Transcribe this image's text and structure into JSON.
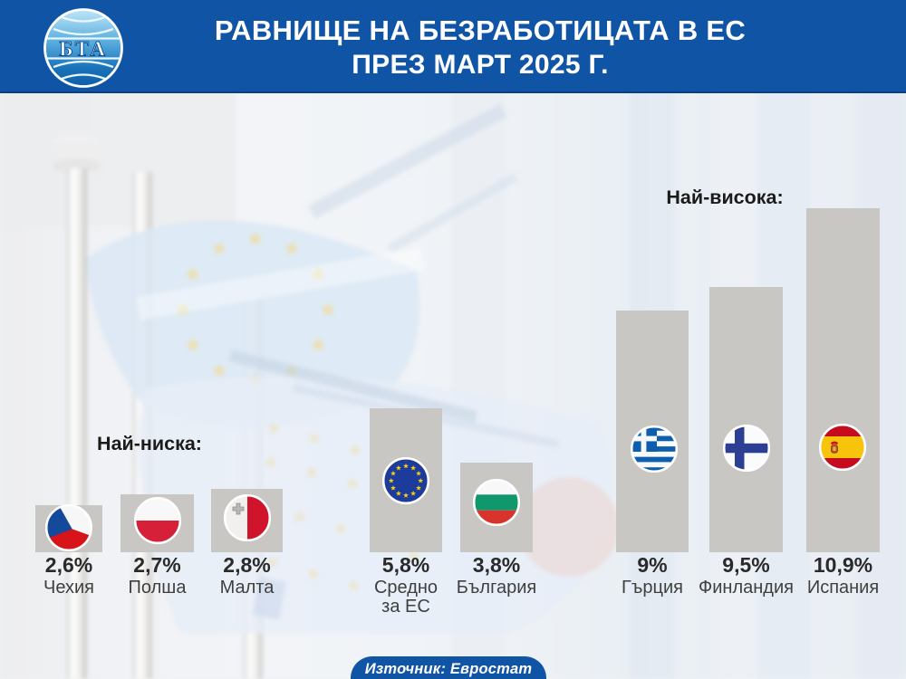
{
  "header": {
    "logo_text": "БТА",
    "title_line1": "РАВНИЩЕ НА БЕЗРАБОТИЦАТА В ЕС",
    "title_line2": "ПРЕЗ МАРТ 2025 Г."
  },
  "chart_data": {
    "type": "bar",
    "title": "Равнище на безработицата в ЕС през март 2025 г.",
    "unit": "%",
    "legend": "none",
    "group_labels": {
      "lowest": "Най-ниска:",
      "highest": "Най-висока:"
    },
    "categories": [
      "Чехия",
      "Полша",
      "Малта",
      "Средно за ЕС",
      "България",
      "Гърция",
      "Финландия",
      "Испания"
    ],
    "values": [
      2.6,
      2.7,
      2.8,
      5.8,
      3.8,
      9,
      9.5,
      10.9
    ],
    "bars": [
      {
        "id": "czechia",
        "group": "lowest",
        "name": "Чехия",
        "value": 2.6,
        "value_label": "2,6%",
        "flag_icon": "flag-czechia-icon"
      },
      {
        "id": "poland",
        "group": "lowest",
        "name": "Полша",
        "value": 2.7,
        "value_label": "2,7%",
        "flag_icon": "flag-poland-icon"
      },
      {
        "id": "malta",
        "group": "lowest",
        "name": "Малта",
        "value": 2.8,
        "value_label": "2,8%",
        "flag_icon": "flag-malta-icon"
      },
      {
        "id": "eu-average",
        "group": "middle",
        "name": "Средно\nза ЕС",
        "value": 5.8,
        "value_label": "5,8%",
        "flag_icon": "flag-eu-icon"
      },
      {
        "id": "bulgaria",
        "group": "middle",
        "name": "България",
        "value": 3.8,
        "value_label": "3,8%",
        "flag_icon": "flag-bulgaria-icon"
      },
      {
        "id": "greece",
        "group": "highest",
        "name": "Гърция",
        "value": 9,
        "value_label": "9%",
        "flag_icon": "flag-greece-icon"
      },
      {
        "id": "finland",
        "group": "highest",
        "name": "Финландия",
        "value": 9.5,
        "value_label": "9,5%",
        "flag_icon": "flag-finland-icon"
      },
      {
        "id": "spain",
        "group": "highest",
        "name": "Испания",
        "value": 10.9,
        "value_label": "10,9%",
        "flag_icon": "flag-spain-icon"
      }
    ]
  },
  "footer": {
    "source_label": "Източник: Евростат"
  },
  "colors": {
    "header_blue": "#1054a6",
    "bar_gray": "#c9c7c4",
    "eu_blue": "#1d3b9b",
    "star_yellow": "#f6d018"
  }
}
